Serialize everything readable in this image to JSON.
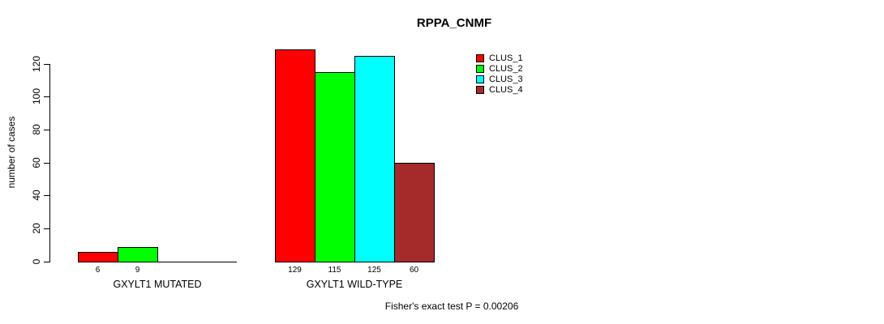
{
  "chart_data": {
    "type": "bar",
    "title": "RPPA_CNMF",
    "ylabel": "number of cases",
    "xlabel": "",
    "ylim": [
      0,
      120
    ],
    "yticks": [
      0,
      20,
      40,
      60,
      80,
      100,
      120
    ],
    "grid": false,
    "legend_position": "top-right",
    "categories": [
      "GXYLT1 MUTATED",
      "GXYLT1 WILD-TYPE"
    ],
    "series": [
      {
        "name": "CLUS_1",
        "color": "#FF0000",
        "values": [
          6,
          129
        ]
      },
      {
        "name": "CLUS_2",
        "color": "#00FF00",
        "values": [
          9,
          115
        ]
      },
      {
        "name": "CLUS_3",
        "color": "#00FFFF",
        "values": [
          0,
          125
        ]
      },
      {
        "name": "CLUS_4",
        "color": "#A52A2A",
        "values": [
          0,
          60
        ]
      }
    ],
    "bar_value_labels_shown": true,
    "annotation": "Fisher's exact test P = 0.00206"
  }
}
